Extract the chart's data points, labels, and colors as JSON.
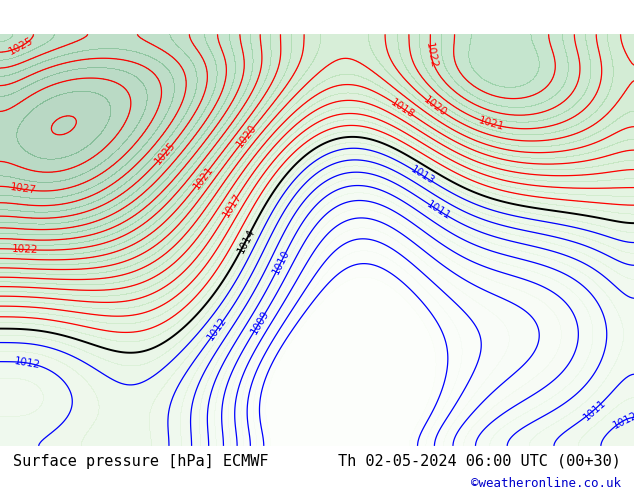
{
  "title_left": "Surface pressure [hPa] ECMWF",
  "title_right": "Th 02-05-2024 06:00 UTC (00+30)",
  "credit": "©weatheronline.co.uk",
  "bg_map_color": "#aad4a0",
  "land_color": "#b8e0b0",
  "sea_color": "#d0d0d0",
  "bottom_bar_color": "#ffffff",
  "title_fontsize": 11,
  "credit_color": "#0000cc",
  "contour_interval": 1,
  "pressure_min": 1005,
  "pressure_max": 1032,
  "red_threshold": 1014,
  "blue_threshold": 1013,
  "figsize": [
    6.34,
    4.9
  ],
  "dpi": 100
}
